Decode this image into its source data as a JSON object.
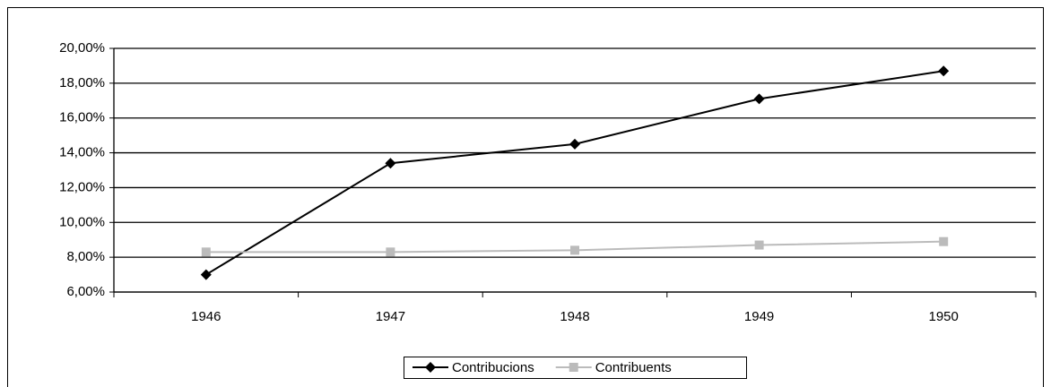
{
  "chart_data": {
    "type": "line",
    "categories": [
      "1946",
      "1947",
      "1948",
      "1949",
      "1950"
    ],
    "series": [
      {
        "name": "Contribucions",
        "color": "#000000",
        "marker": "diamond",
        "values": [
          7.0,
          13.4,
          14.5,
          17.1,
          18.7
        ]
      },
      {
        "name": "Contribuents",
        "color": "#bbbbbb",
        "marker": "square",
        "values": [
          8.3,
          8.3,
          8.4,
          8.7,
          8.9
        ]
      }
    ],
    "ylim": [
      6,
      20
    ],
    "yticks": [
      {
        "value": 6,
        "label": "6,00%"
      },
      {
        "value": 8,
        "label": "8,00%"
      },
      {
        "value": 10,
        "label": "10,00%"
      },
      {
        "value": 12,
        "label": "12,00%"
      },
      {
        "value": 14,
        "label": "14,00%"
      },
      {
        "value": 16,
        "label": "16,00%"
      },
      {
        "value": 18,
        "label": "18,00%"
      },
      {
        "value": 20,
        "label": "20,00%"
      }
    ],
    "grid": true,
    "legend": "bottom"
  }
}
